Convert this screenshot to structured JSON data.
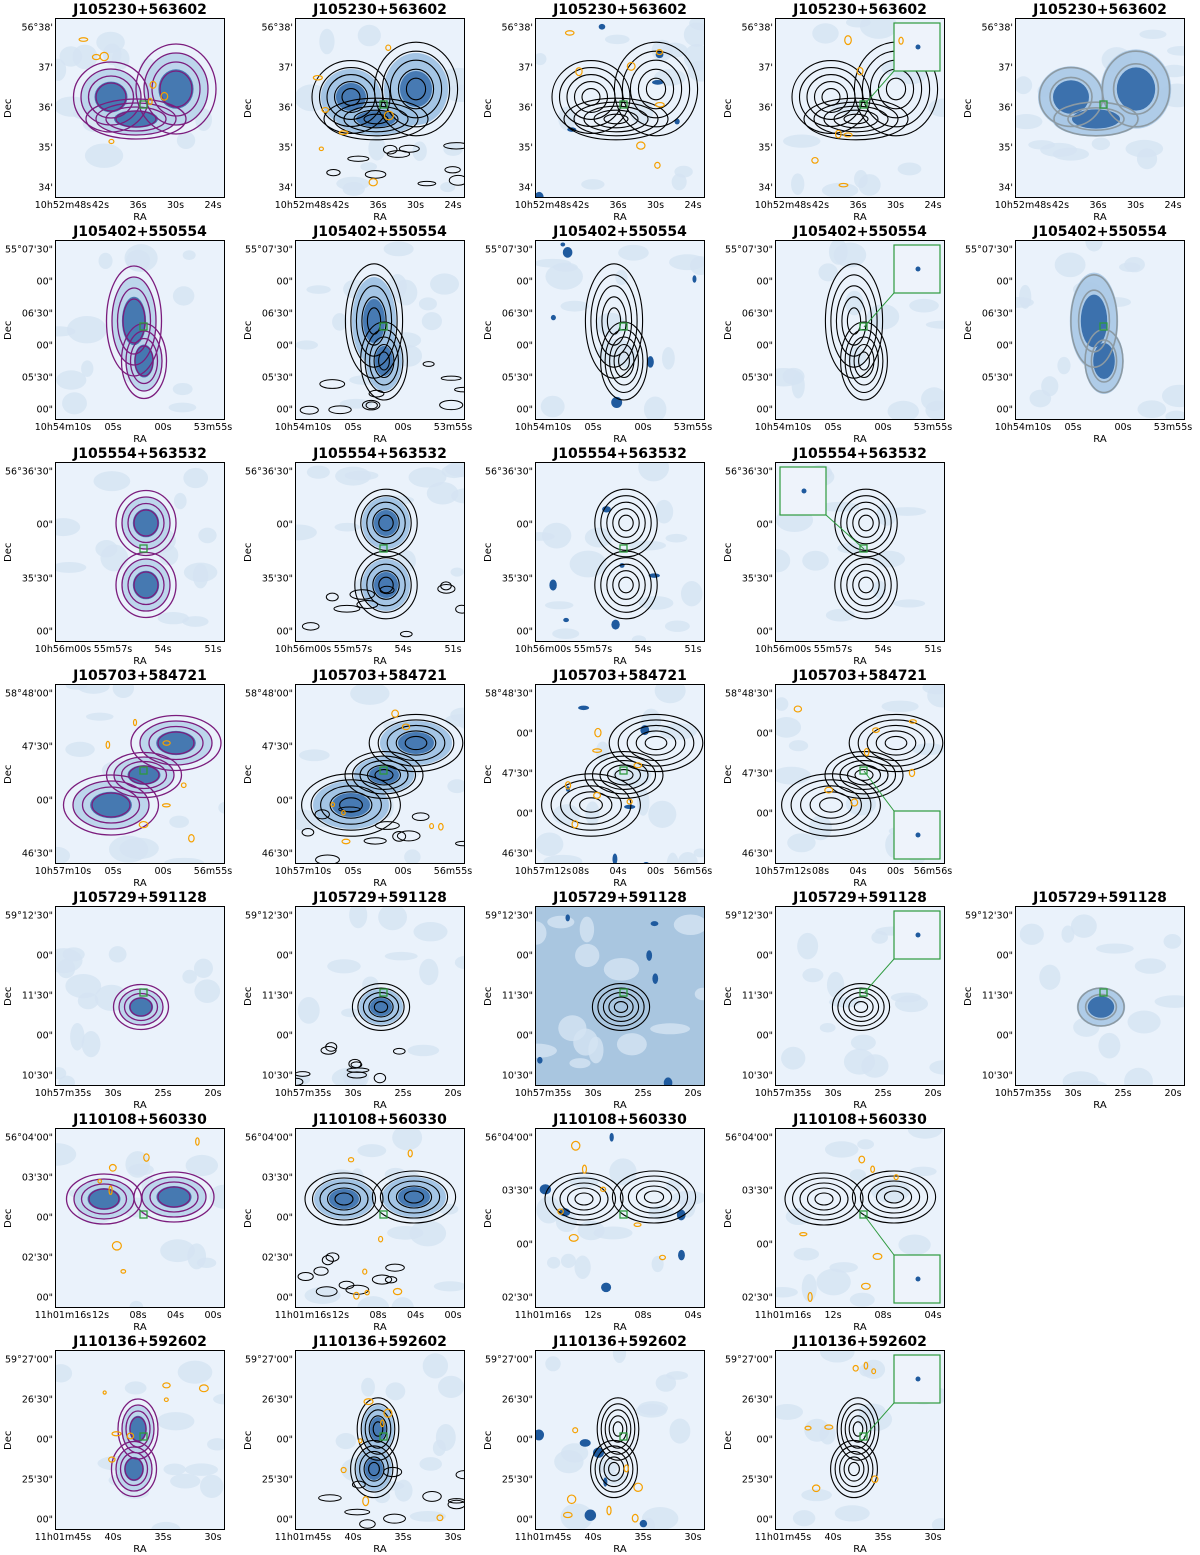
{
  "axis_labels": {
    "x": "RA",
    "y": "Dec"
  },
  "colors": {
    "background_map": "#eaf2fb",
    "emission_blue": "#1f5a9e",
    "contour_purple": "#7b1c7d",
    "contour_black": "#000000",
    "contour_orange": "#f5a000",
    "contour_grey": "#8c9aa3",
    "marker_green": "#2e9a3e"
  },
  "columns": [
    "low-resolution radio map with purple contours",
    "radio map with black contours",
    "optical image with black contours",
    "contours with optical cutout inset",
    "alternative radio map with grey contours"
  ],
  "rows": [
    {
      "source": "J105230+563602",
      "panels": [
        1,
        1,
        1,
        1,
        1
      ],
      "xticks": [
        "10h52m48s",
        "42s",
        "36s",
        "30s",
        "24s"
      ],
      "yticks": [
        "56°38'",
        "37'",
        "36'",
        "35'",
        "34'"
      ]
    },
    {
      "source": "J105402+550554",
      "panels": [
        1,
        1,
        1,
        1,
        1
      ],
      "xticks": [
        "10h54m10s",
        "05s",
        "00s",
        "53m55s"
      ],
      "yticks": [
        "55°07'30\"",
        "00\"",
        "06'30\"",
        "00\"",
        "05'30\"",
        "00\""
      ]
    },
    {
      "source": "J105554+563532",
      "panels": [
        1,
        1,
        1,
        1,
        0
      ],
      "xticks": [
        "10h56m00s",
        "55m57s",
        "54s",
        "51s"
      ],
      "yticks": [
        "56°36'30\"",
        "00\"",
        "35'30\"",
        "00\""
      ]
    },
    {
      "source": "J105703+584721",
      "panels": [
        1,
        1,
        1,
        1,
        0
      ],
      "xticks": [
        "10h57m10s",
        "05s",
        "00s",
        "56m55s"
      ],
      "xticks_alt": [
        "10h57m12s",
        "08s",
        "04s",
        "00s",
        "56m56s"
      ],
      "yticks": [
        "58°48'00\"",
        "47'30\"",
        "00\"",
        "46'30\""
      ],
      "yticks_alt": [
        "58°48'30\"",
        "00\"",
        "47'30\"",
        "00\"",
        "46'30\""
      ]
    },
    {
      "source": "J105729+591128",
      "panels": [
        1,
        1,
        1,
        1,
        1
      ],
      "xticks": [
        "10h57m35s",
        "30s",
        "25s",
        "20s"
      ],
      "yticks": [
        "59°12'30\"",
        "00\"",
        "11'30\"",
        "00\"",
        "10'30\""
      ]
    },
    {
      "source": "J110108+560330",
      "panels": [
        1,
        1,
        1,
        1,
        0
      ],
      "xticks": [
        "11h01m16s",
        "12s",
        "08s",
        "04s",
        "00s"
      ],
      "xticks_alt": [
        "11h01m16s",
        "12s",
        "08s",
        "04s"
      ],
      "yticks": [
        "56°04'00\"",
        "03'30\"",
        "00\"",
        "02'30\"",
        "00\""
      ],
      "yticks_alt": [
        "56°04'00\"",
        "03'30\"",
        "00\"",
        "02'30\""
      ]
    },
    {
      "source": "J110136+592602",
      "panels": [
        1,
        1,
        1,
        1,
        0
      ],
      "xticks": [
        "11h01m45s",
        "40s",
        "35s",
        "30s"
      ],
      "yticks": [
        "59°27'00\"",
        "26'30\"",
        "00\"",
        "25'30\"",
        "00\""
      ]
    }
  ]
}
